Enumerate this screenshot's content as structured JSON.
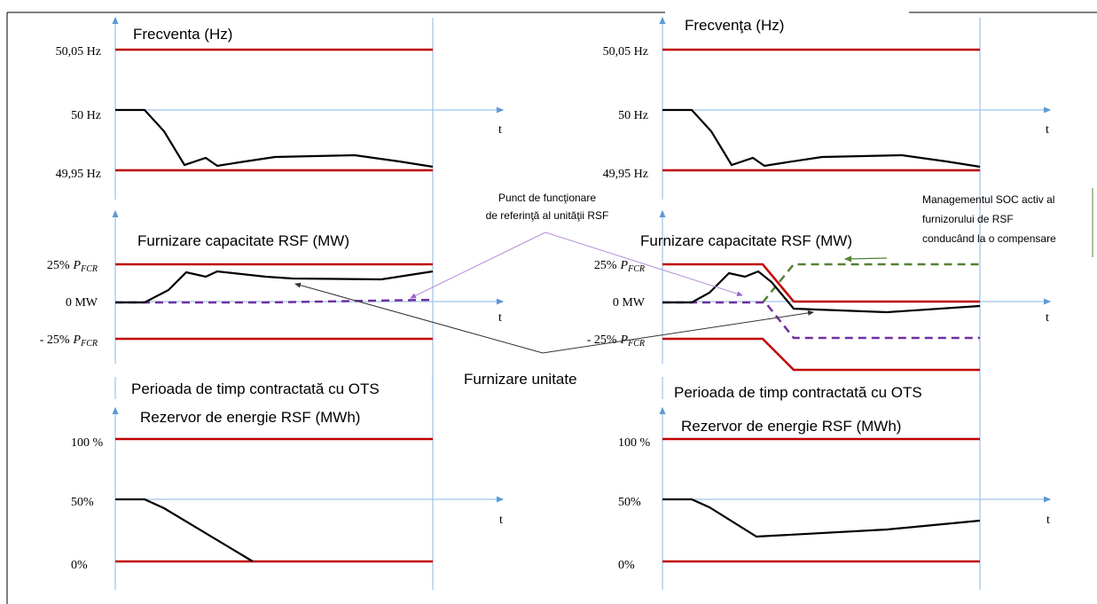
{
  "left_panel": {
    "frequency": {
      "title": "Frecventa (Hz)",
      "labels": [
        "50,05 Hz",
        "50 Hz",
        "49,95 Hz"
      ],
      "axis": "t"
    },
    "capacity": {
      "title": "Furnizare capacitate RSF (MW)",
      "labels": [
        {
          "prefix": "25%",
          "symbol": "P",
          "subscript": "FCR"
        },
        {
          "prefix": "0 MW"
        },
        {
          "prefix": "- 25%",
          "symbol": "P",
          "subscript": "FCR"
        }
      ],
      "axis": "t"
    },
    "period": "Perioada de timp contractată cu OTS",
    "energy": {
      "title": "Rezervor de energie RSF (MWh)",
      "labels": [
        "100 %",
        "50%",
        "0%"
      ],
      "axis": "t"
    }
  },
  "right_panel": {
    "frequency": {
      "title": "Frecvenţa (Hz)",
      "labels": [
        "50,05 Hz",
        "50 Hz",
        "49,95 Hz"
      ],
      "axis": "t"
    },
    "capacity": {
      "title": "Furnizare capacitate RSF (MW)",
      "labels": [
        {
          "prefix": "25%",
          "symbol": "P",
          "subscript": "FCR"
        },
        {
          "prefix": "0 MW"
        },
        {
          "prefix": "- 25%",
          "symbol": "P",
          "subscript": "FCR"
        }
      ],
      "axis": "t"
    },
    "period": "Perioada de timp contractată cu OTS",
    "energy": {
      "title": "Rezervor de energie RSF (MWh)",
      "labels": [
        "100 %",
        "50%",
        "0%"
      ],
      "axis": "t"
    }
  },
  "annotations": {
    "reference_point": [
      "Punct de funcţionare",
      "de referinţă al unităţii RSF"
    ],
    "soc_management": [
      "Managementul SOC activ al",
      "furnizorului de RSF",
      "conducând la o compensare"
    ],
    "unit_supply": "Furnizare unitate"
  }
}
